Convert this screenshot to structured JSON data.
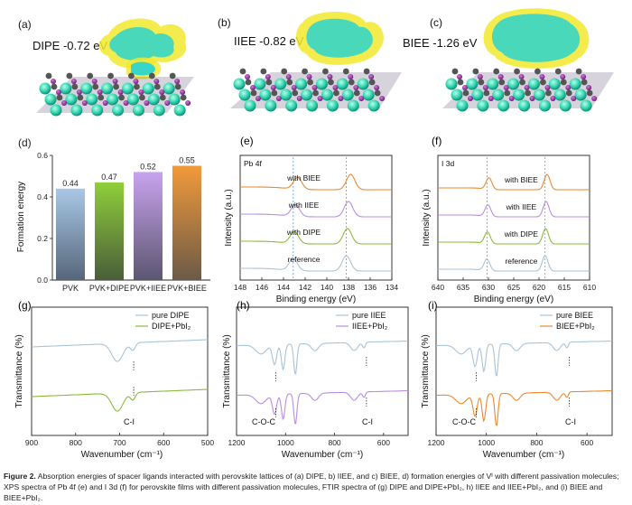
{
  "panels": {
    "a": {
      "label": "(a)",
      "energy": "DIPE -0.72 eV"
    },
    "b": {
      "label": "(b)",
      "energy": "IIEE -0.82 eV"
    },
    "c": {
      "label": "(c)",
      "energy": "BIEE -1.26 eV"
    },
    "d": {
      "label": "(d)"
    },
    "e": {
      "label": "(e)",
      "title": "Pb 4f"
    },
    "f": {
      "label": "(f)",
      "title": "I 3d"
    },
    "g": {
      "label": "(g)"
    },
    "h": {
      "label": "(h)"
    },
    "i": {
      "label": "(i)"
    }
  },
  "colors": {
    "blue": "#a9c3d9",
    "green": "#8bbb3a",
    "purple": "#b88fe0",
    "orange": "#ea8a2f",
    "ref": "#4a90d0"
  },
  "chart_data": [
    {
      "type": "bar",
      "id": "d",
      "categories": [
        "PVK",
        "PVK+DIPE",
        "PVK+IIEE",
        "PVK+BIEE"
      ],
      "values": [
        0.44,
        0.47,
        0.52,
        0.55
      ],
      "data_labels": [
        "0.44",
        "0.47",
        "0.52",
        "0.55"
      ],
      "ylabel": "Formation energy",
      "ylim": [
        0.0,
        0.6
      ],
      "yticks": [
        "0.0",
        "0.2",
        "0.4",
        "0.6"
      ]
    },
    {
      "type": "line",
      "id": "e",
      "title": "Pb 4f",
      "xlabel": "Binding energy (eV)",
      "ylabel": "Intensity (a.u.)",
      "xlim": [
        148,
        134
      ],
      "xticks": [
        "148",
        "146",
        "144",
        "142",
        "140",
        "138",
        "136",
        "134"
      ],
      "series": [
        {
          "name": "reference",
          "peaks": [
            143.1,
            138.2
          ]
        },
        {
          "name": "with DIPE",
          "peaks": [
            143.0,
            138.1
          ]
        },
        {
          "name": "with IIEE",
          "peaks": [
            142.9,
            138.0
          ]
        },
        {
          "name": "with BIEE",
          "peaks": [
            142.7,
            137.8
          ]
        }
      ]
    },
    {
      "type": "line",
      "id": "f",
      "title": "I 3d",
      "xlabel": "Binding energy (eV)",
      "ylabel": "Intensity (a.u.)",
      "xlim": [
        640,
        610
      ],
      "xticks": [
        "640",
        "635",
        "630",
        "625",
        "620",
        "615",
        "610"
      ],
      "series": [
        {
          "name": "reference",
          "peaks": [
            630.3,
            618.8
          ]
        },
        {
          "name": "with DIPE",
          "peaks": [
            630.2,
            618.7
          ]
        },
        {
          "name": "with IIEE",
          "peaks": [
            630.1,
            618.6
          ]
        },
        {
          "name": "with BIEE",
          "peaks": [
            629.9,
            618.4
          ]
        }
      ]
    },
    {
      "type": "line",
      "id": "g",
      "xlabel": "Wavenumber (cm⁻¹)",
      "ylabel": "Transmittance (%)",
      "xlim": [
        900,
        500
      ],
      "xticks": [
        "900",
        "800",
        "700",
        "600",
        "500"
      ],
      "legend": [
        "pure DIPE",
        "DIPE+PbI₂"
      ],
      "annotations": [
        "C-I"
      ]
    },
    {
      "type": "line",
      "id": "h",
      "xlabel": "Wavenumber (cm⁻¹)",
      "ylabel": "Transmittance (%)",
      "xlim": [
        1200,
        500
      ],
      "xticks": [
        "1200",
        "1000",
        "800",
        "600"
      ],
      "legend": [
        "pure IIEE",
        "IIEE+PbI₂"
      ],
      "annotations": [
        "C-O-C",
        "C-I"
      ]
    },
    {
      "type": "line",
      "id": "i",
      "xlabel": "Wavenumber (cm⁻¹)",
      "ylabel": "Transmittance (%)",
      "xlim": [
        1200,
        500
      ],
      "xticks": [
        "1200",
        "1000",
        "800",
        "600"
      ],
      "legend": [
        "pure BIEE",
        "BIEE+PbI₂"
      ],
      "annotations": [
        "C-O-C",
        "C-I"
      ]
    }
  ],
  "caption": {
    "lead": "Figure 2.",
    "text": " Absorption energies of spacer ligands interacted with perovskite lattices of (a) DIPE, b) IIEE, and c) BIEE, d) formation energies of Vᴵ with different passivation molecules; XPS spectra of Pb 4f (e) and I 3d (f) for perovskite films with different passivation molecules, FTIR spectra of (g) DIPE and DIPE+PbI₂, h) IIEE and IIEE+PbI₂, and (i) BIEE and BIEE+PbI₂."
  }
}
